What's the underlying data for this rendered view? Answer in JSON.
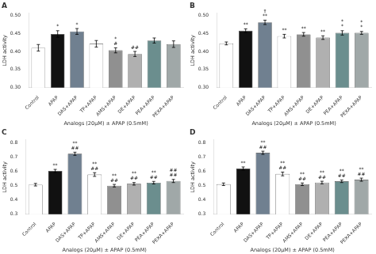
{
  "chart_data": [
    {
      "type": "bar",
      "title": "A",
      "categories": [
        "Control",
        "APAP",
        "DAS+APAP",
        "TP+APAP",
        "AMS+APAP",
        "DE+APAP",
        "PEA+APAP",
        "PEXA+APAP"
      ],
      "values": [
        0.41,
        0.448,
        0.455,
        0.421,
        0.403,
        0.393,
        0.43,
        0.42
      ],
      "errors": [
        0.009,
        0.009,
        0.008,
        0.009,
        0.007,
        0.007,
        0.007,
        0.009
      ],
      "colors": [
        "#ffffff",
        "#111111",
        "#708090",
        "#ffffff",
        "#909090",
        "#b0b0b0",
        "#6b8e8e",
        "#a0a8a8"
      ],
      "annotations": [
        {
          "category": "APAP",
          "lines": [
            "*"
          ]
        },
        {
          "category": "DAS+APAP",
          "lines": [
            "*"
          ]
        },
        {
          "category": "AMS+APAP",
          "lines": [
            "*",
            "#"
          ]
        },
        {
          "category": "DE+APAP",
          "lines": [
            "##"
          ]
        }
      ],
      "xlabel": "Analogs (20μM) ± APAP (0.5mM)",
      "ylabel": "LDH activity",
      "ylim": [
        0.3,
        0.505
      ],
      "yticks": [
        {
          "value": 0.3,
          "label": "0.30"
        },
        {
          "value": 0.35,
          "label": "0.35"
        },
        {
          "value": 0.4,
          "label": "0.40"
        },
        {
          "value": 0.45,
          "label": "0.45"
        },
        {
          "value": 0.5,
          "label": "0.50"
        }
      ],
      "grid": false
    },
    {
      "type": "bar",
      "title": "B",
      "categories": [
        "Control",
        "APAP",
        "DAS+APAP",
        "TP+APAP",
        "AMS+APAP",
        "DE+APAP",
        "PEA+APAP",
        "PEXA+APAP"
      ],
      "values": [
        0.422,
        0.457,
        0.48,
        0.442,
        0.447,
        0.438,
        0.451,
        0.451
      ],
      "errors": [
        0.004,
        0.005,
        0.006,
        0.005,
        0.005,
        0.005,
        0.006,
        0.004
      ],
      "colors": [
        "#ffffff",
        "#111111",
        "#708090",
        "#ffffff",
        "#909090",
        "#b0b0b0",
        "#6b8e8e",
        "#a0a8a8"
      ],
      "annotations": [
        {
          "category": "APAP",
          "lines": [
            "**"
          ]
        },
        {
          "category": "DAS+APAP",
          "lines": [
            "†",
            "**"
          ]
        },
        {
          "category": "TP+APAP",
          "lines": [
            "**"
          ]
        },
        {
          "category": "AMS+APAP",
          "lines": [
            "**"
          ]
        },
        {
          "category": "DE+APAP",
          "lines": [
            "**"
          ]
        },
        {
          "category": "PEA+APAP",
          "lines": [
            "*",
            "*"
          ]
        },
        {
          "category": "PEXA+APAP",
          "lines": [
            "*",
            "*"
          ]
        }
      ],
      "xlabel": "Analogs (20μM) ± APAP (0.5mM)",
      "ylabel": "LDH activity",
      "ylim": [
        0.3,
        0.505
      ],
      "yticks": [
        {
          "value": 0.3,
          "label": "0.30"
        },
        {
          "value": 0.35,
          "label": "0.35"
        },
        {
          "value": 0.4,
          "label": "0.40"
        },
        {
          "value": 0.45,
          "label": "0.45"
        },
        {
          "value": 0.5,
          "label": "0.50"
        }
      ],
      "grid": false
    },
    {
      "type": "bar",
      "title": "C",
      "categories": [
        "Control",
        "APAP",
        "DAS+APAP",
        "TP+APAP",
        "AMS+APAP",
        "DE+APAP",
        "PEA+APAP",
        "PEXA+APAP"
      ],
      "values": [
        0.507,
        0.603,
        0.723,
        0.578,
        0.5,
        0.513,
        0.521,
        0.533
      ],
      "errors": [
        0.009,
        0.011,
        0.011,
        0.013,
        0.009,
        0.009,
        0.009,
        0.011
      ],
      "colors": [
        "#ffffff",
        "#111111",
        "#708090",
        "#ffffff",
        "#909090",
        "#b0b0b0",
        "#6b8e8e",
        "#a0a8a8"
      ],
      "annotations": [
        {
          "category": "APAP",
          "lines": [
            "**"
          ]
        },
        {
          "category": "DAS+APAP",
          "lines": [
            "**",
            "##"
          ]
        },
        {
          "category": "TP+APAP",
          "lines": [
            "**",
            "##"
          ]
        },
        {
          "category": "AMS+APAP",
          "lines": [
            "**",
            "##"
          ]
        },
        {
          "category": "DE+APAP",
          "lines": [
            "**",
            "##"
          ]
        },
        {
          "category": "PEA+APAP",
          "lines": [
            "**",
            "##"
          ]
        },
        {
          "category": "PEXA+APAP",
          "lines": [
            "##",
            "##"
          ]
        }
      ],
      "xlabel": "Analogs (20μM) ± APAP (0.5mM)",
      "ylabel": "LDH activity",
      "ylim": [
        0.3,
        0.82
      ],
      "yticks": [
        0.3,
        0.4,
        0.5,
        0.6,
        0.7,
        0.8
      ],
      "grid": false
    },
    {
      "type": "bar",
      "title": "D",
      "categories": [
        "Control",
        "APAP",
        "DAS+APAP",
        "TP+APAP",
        "AMS+APAP",
        "DE+APAP",
        "PEA+APAP",
        "PEXA+APAP"
      ],
      "values": [
        0.51,
        0.62,
        0.73,
        0.582,
        0.51,
        0.522,
        0.531,
        0.542
      ],
      "errors": [
        0.009,
        0.011,
        0.011,
        0.013,
        0.009,
        0.009,
        0.009,
        0.011
      ],
      "colors": [
        "#ffffff",
        "#111111",
        "#708090",
        "#ffffff",
        "#909090",
        "#b0b0b0",
        "#6b8e8e",
        "#a0a8a8"
      ],
      "annotations": [
        {
          "category": "APAP",
          "lines": [
            "**"
          ]
        },
        {
          "category": "DAS+APAP",
          "lines": [
            "**",
            "##"
          ]
        },
        {
          "category": "TP+APAP",
          "lines": [
            "**",
            "##"
          ]
        },
        {
          "category": "AMS+APAP",
          "lines": [
            "**",
            "##"
          ]
        },
        {
          "category": "DE+APAP",
          "lines": [
            "**",
            "##"
          ]
        },
        {
          "category": "PEA+APAP",
          "lines": [
            "**",
            "##"
          ]
        },
        {
          "category": "PEXA+APAP",
          "lines": [
            "**",
            "##"
          ]
        }
      ],
      "xlabel": "Analogs (20μM) ± APAP (0.5mM)",
      "ylabel": "LDH activity",
      "ylim": [
        0.3,
        0.82
      ],
      "yticks": [
        0.3,
        0.4,
        0.5,
        0.6,
        0.7,
        0.8
      ],
      "grid": false
    }
  ]
}
